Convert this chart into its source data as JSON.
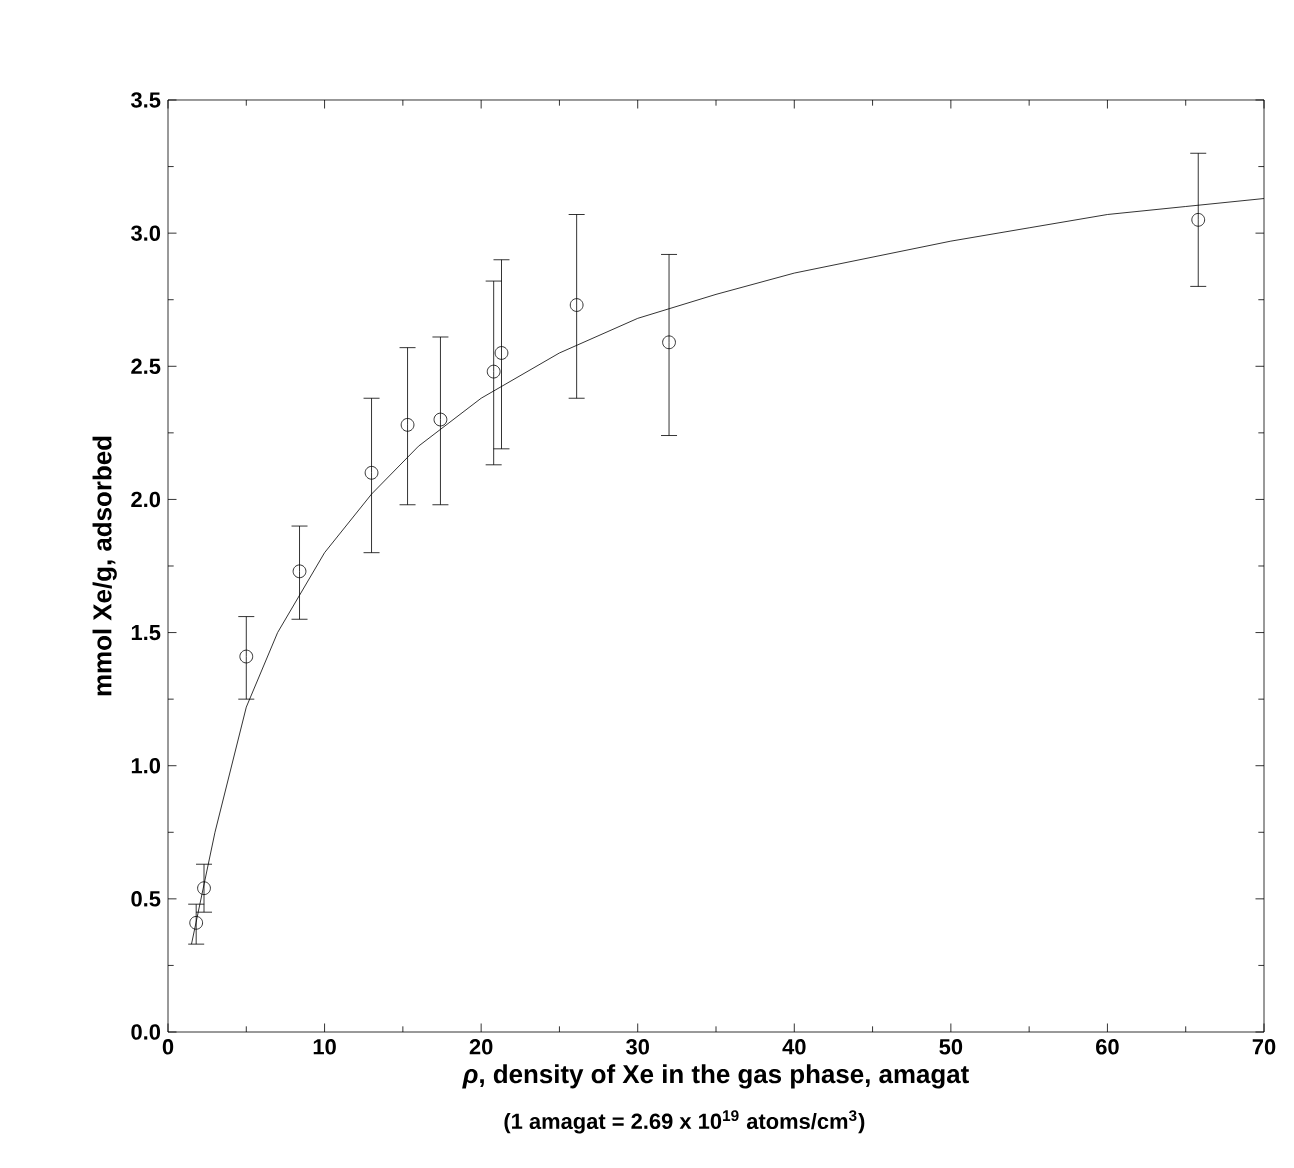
{
  "chart_data": {
    "type": "scatter",
    "xlabel": "*ρ*, density of Xe in the gas phase, amagat",
    "ylabel": "mmol Xe/g, adsorbed",
    "annotations": [
      "(1 amagat = 2.69 x 10$^{19}$ atoms/cm$^{3}$)"
    ],
    "xlim": [
      0,
      70
    ],
    "xticks": [
      0,
      10,
      20,
      30,
      40,
      50,
      60,
      70
    ],
    "ylim": [
      0,
      3.5
    ],
    "yticks": [
      {
        "value": 0,
        "label": "0.0"
      },
      {
        "value": 0.5,
        "label": "0.5"
      },
      {
        "value": 1,
        "label": "1.0"
      },
      {
        "value": 1.5,
        "label": "1.5"
      },
      {
        "value": 2,
        "label": "2.0"
      },
      {
        "value": 2.5,
        "label": "2.5"
      },
      {
        "value": 3,
        "label": "3.0"
      },
      {
        "value": 3.5,
        "label": "3.5"
      }
    ],
    "grid": false,
    "series": [
      {
        "marker": "circle",
        "color": "#000000",
        "x": [
          1.8,
          2.3,
          5.0,
          8.4,
          13.0,
          15.3,
          17.4,
          20.8,
          21.3,
          26.1,
          32.0,
          65.8
        ],
        "values": [
          0.41,
          0.54,
          1.41,
          1.73,
          2.1,
          2.28,
          2.3,
          2.48,
          2.55,
          2.73,
          2.59,
          3.05
        ],
        "errors": [
          [
            0.33,
            0.48
          ],
          [
            0.45,
            0.63
          ],
          [
            1.25,
            1.56
          ],
          [
            1.55,
            1.9
          ],
          [
            1.8,
            2.38
          ],
          [
            1.98,
            2.57
          ],
          [
            1.98,
            2.61
          ],
          [
            2.13,
            2.82
          ],
          [
            2.19,
            2.9
          ],
          [
            2.38,
            3.07
          ],
          [
            2.24,
            2.92
          ],
          [
            2.8,
            3.3
          ]
        ]
      },
      {
        "type": "line",
        "marker": "none",
        "line_style": "solid",
        "color": "#000000",
        "x": [
          1.5,
          3,
          5,
          7,
          10,
          13,
          16,
          20,
          25,
          30,
          35,
          40,
          45,
          50,
          55,
          60,
          65,
          70
        ],
        "values": [
          0.33,
          0.75,
          1.22,
          1.5,
          1.8,
          2.02,
          2.2,
          2.38,
          2.55,
          2.68,
          2.77,
          2.85,
          2.91,
          2.97,
          3.02,
          3.07,
          3.1,
          3.13
        ]
      }
    ]
  }
}
